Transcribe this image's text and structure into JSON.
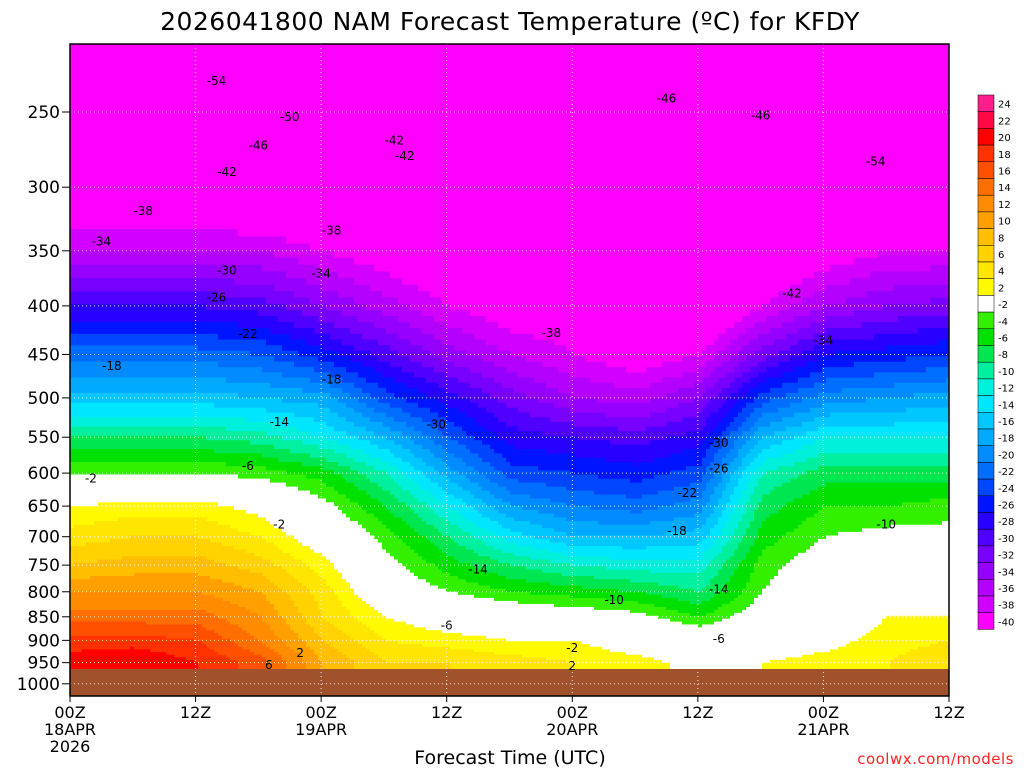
{
  "chart_data": {
    "type": "heatmap",
    "title": "2026041800 NAM Forecast Temperature (ºC) for KFDY",
    "xlabel": "Forecast Time (UTC)",
    "ylabel": "",
    "credit": "coolwx.com/models",
    "y_axis": {
      "scale": "log",
      "inverted": true,
      "ticks": [
        250,
        300,
        350,
        400,
        450,
        500,
        550,
        600,
        650,
        700,
        750,
        800,
        850,
        900,
        950,
        1000
      ],
      "tick_labels": [
        "250",
        "300",
        "350",
        "400",
        "450",
        "500",
        "550",
        "600",
        "650",
        "700",
        "750",
        "800",
        "850",
        "900",
        "950",
        "1000"
      ]
    },
    "x_axis": {
      "ticks": [
        0,
        12,
        24,
        36,
        48,
        60,
        72,
        84
      ],
      "tick_labels": [
        [
          "00Z",
          "18APR",
          "2026"
        ],
        [
          "12Z"
        ],
        [
          "00Z",
          "19APR"
        ],
        [
          "12Z"
        ],
        [
          "00Z",
          "20APR"
        ],
        [
          "12Z"
        ],
        [
          "00Z",
          "21APR"
        ],
        [
          "12Z"
        ]
      ],
      "range": [
        0,
        84
      ]
    },
    "grid": true,
    "colorbar": {
      "levels": [
        24,
        22,
        20,
        18,
        16,
        14,
        12,
        10,
        8,
        6,
        4,
        2,
        -2,
        -4,
        -6,
        -8,
        -10,
        -12,
        -14,
        -16,
        -18,
        -20,
        -22,
        -24,
        -26,
        -28,
        -30,
        -32,
        -34,
        -36,
        -38,
        -40
      ],
      "labels": [
        "24",
        "22",
        "20",
        "18",
        "16",
        "14",
        "12",
        "10",
        "8",
        "6",
        "4",
        "2",
        "-2",
        "-4",
        "-6",
        "-8",
        "-10",
        "-12",
        "-14",
        "-16",
        "-18",
        "-20",
        "-22",
        "-24",
        "-26",
        "-28",
        "-30",
        "-32",
        "-34",
        "-36",
        "-38",
        "-40"
      ],
      "colors": [
        "#ff1e8c",
        "#ff0a46",
        "#ff0000",
        "#ff3200",
        "#ff5000",
        "#ff6e00",
        "#ff8c00",
        "#ffa000",
        "#ffbe00",
        "#ffd200",
        "#ffe600",
        "#fffa00",
        "#ffffff",
        "#32f000",
        "#00e100",
        "#00e650",
        "#00f0a0",
        "#00f0dc",
        "#00e6ff",
        "#00c8ff",
        "#00aaff",
        "#008cff",
        "#006eff",
        "#0046ff",
        "#0014ff",
        "#2800ff",
        "#5000ff",
        "#7800ff",
        "#9600ff",
        "#b400ff",
        "#d200ff",
        "#ff00ff"
      ]
    },
    "forecast_hours": [
      0,
      6,
      12,
      18,
      24,
      30,
      36,
      42,
      48,
      54,
      60,
      66,
      72,
      78,
      84
    ],
    "profiles": [
      {
        "hour": 0,
        "temps": [
          -53,
          -44,
          -38,
          -30,
          -23,
          -17,
          -10,
          -4,
          2,
          5,
          8,
          12,
          15,
          19,
          21
        ]
      },
      {
        "hour": 6,
        "temps": [
          -53,
          -44,
          -38,
          -30,
          -23,
          -17,
          -10,
          -4,
          3,
          6,
          9,
          12,
          15,
          19,
          22
        ]
      },
      {
        "hour": 12,
        "temps": [
          -53,
          -44,
          -38,
          -30,
          -23,
          -17,
          -10,
          -4,
          3,
          6,
          9,
          12,
          15,
          18,
          20
        ]
      },
      {
        "hour": 18,
        "temps": [
          -53,
          -45,
          -38,
          -31,
          -24,
          -18,
          -11,
          -5,
          1,
          4,
          7,
          10,
          12,
          14,
          17
        ]
      },
      {
        "hour": 24,
        "temps": [
          -54,
          -46,
          -40,
          -34,
          -27,
          -19,
          -14,
          -7,
          -3,
          0,
          3,
          5,
          6,
          8,
          10
        ]
      },
      {
        "hour": 30,
        "temps": [
          -54,
          -47,
          -42,
          -37,
          -31,
          -25,
          -18,
          -12,
          -8,
          -5,
          -3,
          -1,
          2,
          4,
          6
        ]
      },
      {
        "hour": 36,
        "temps": [
          -53,
          -47,
          -44,
          -40,
          -35,
          -29,
          -24,
          -19,
          -14,
          -10,
          -7,
          -4,
          0,
          3,
          6
        ]
      },
      {
        "hour": 42,
        "temps": [
          -52,
          -47,
          -44,
          -42,
          -38,
          -33,
          -29,
          -25,
          -20,
          -15,
          -10,
          -6,
          -1,
          2,
          5
        ]
      },
      {
        "hour": 48,
        "temps": [
          -50,
          -47,
          -44,
          -42,
          -40,
          -36,
          -30,
          -26,
          -22,
          -18,
          -12,
          -7,
          -2,
          2,
          4
        ]
      },
      {
        "hour": 54,
        "temps": [
          -48,
          -46,
          -45,
          -44,
          -42,
          -37,
          -31,
          -27,
          -23,
          -18,
          -13,
          -8,
          -3,
          0,
          3
        ]
      },
      {
        "hour": 60,
        "temps": [
          -50,
          -48,
          -46,
          -45,
          -40,
          -34,
          -29,
          -25,
          -21,
          -17,
          -13,
          -10,
          -6,
          -1,
          1
        ]
      },
      {
        "hour": 66,
        "temps": [
          -52,
          -48,
          -44,
          -40,
          -33,
          -25,
          -18,
          -12,
          -9,
          -7,
          -5,
          -4,
          -2,
          0,
          2
        ]
      },
      {
        "hour": 72,
        "temps": [
          -53,
          -47,
          -42,
          -36,
          -28,
          -21,
          -14,
          -9,
          -6,
          -4,
          -2,
          -1,
          0,
          1,
          3
        ]
      },
      {
        "hour": 78,
        "temps": [
          -53,
          -46,
          -40,
          -34,
          -27,
          -20,
          -14,
          -9,
          -6,
          -3,
          -1,
          1,
          2,
          3,
          4
        ]
      },
      {
        "hour": 84,
        "temps": [
          -53,
          -46,
          -40,
          -33,
          -26,
          -19,
          -14,
          -9,
          -5,
          -3,
          -1,
          1,
          2,
          4,
          6
        ]
      }
    ],
    "profile_levels": [
      250,
      300,
      350,
      400,
      450,
      500,
      550,
      600,
      650,
      700,
      750,
      800,
      850,
      900,
      950
    ],
    "contour_labels": [
      {
        "text": "-54",
        "hour": 14,
        "p": 232
      },
      {
        "text": "-50",
        "hour": 21,
        "p": 253
      },
      {
        "text": "-46",
        "hour": 18,
        "p": 271
      },
      {
        "text": "-42",
        "hour": 15,
        "p": 289
      },
      {
        "text": "-38",
        "hour": 7,
        "p": 318
      },
      {
        "text": "-34",
        "hour": 3,
        "p": 342
      },
      {
        "text": "-30",
        "hour": 15,
        "p": 367
      },
      {
        "text": "-26",
        "hour": 14,
        "p": 392
      },
      {
        "text": "-22",
        "hour": 17,
        "p": 428
      },
      {
        "text": "-18",
        "hour": 4,
        "p": 463
      },
      {
        "text": "-18",
        "hour": 25,
        "p": 478
      },
      {
        "text": "-14",
        "hour": 20,
        "p": 530
      },
      {
        "text": "-6",
        "hour": 17,
        "p": 590
      },
      {
        "text": "-2",
        "hour": 2,
        "p": 608
      },
      {
        "text": "-2",
        "hour": 20,
        "p": 680
      },
      {
        "text": "2",
        "hour": 22,
        "p": 928
      },
      {
        "text": "6",
        "hour": 19,
        "p": 955
      },
      {
        "text": "-42",
        "hour": 31,
        "p": 268
      },
      {
        "text": "-42",
        "hour": 32,
        "p": 278
      },
      {
        "text": "-38",
        "hour": 25,
        "p": 333
      },
      {
        "text": "-34",
        "hour": 24,
        "p": 370
      },
      {
        "text": "-38",
        "hour": 46,
        "p": 427
      },
      {
        "text": "-30",
        "hour": 35,
        "p": 533
      },
      {
        "text": "-46",
        "hour": 57,
        "p": 242
      },
      {
        "text": "-46",
        "hour": 66,
        "p": 252
      },
      {
        "text": "-54",
        "hour": 77,
        "p": 282
      },
      {
        "text": "-42",
        "hour": 69,
        "p": 388
      },
      {
        "text": "-34",
        "hour": 72,
        "p": 435
      },
      {
        "text": "-30",
        "hour": 62,
        "p": 558
      },
      {
        "text": "-26",
        "hour": 62,
        "p": 593
      },
      {
        "text": "-22",
        "hour": 59,
        "p": 630
      },
      {
        "text": "-18",
        "hour": 58,
        "p": 690
      },
      {
        "text": "-10",
        "hour": 78,
        "p": 680
      },
      {
        "text": "-14",
        "hour": 39,
        "p": 758
      },
      {
        "text": "-14",
        "hour": 62,
        "p": 796
      },
      {
        "text": "-10",
        "hour": 52,
        "p": 816
      },
      {
        "text": "-6",
        "hour": 36,
        "p": 868
      },
      {
        "text": "-6",
        "hour": 62,
        "p": 897
      },
      {
        "text": "-2",
        "hour": 48,
        "p": 917
      },
      {
        "text": "2",
        "hour": 48,
        "p": 958
      }
    ]
  }
}
